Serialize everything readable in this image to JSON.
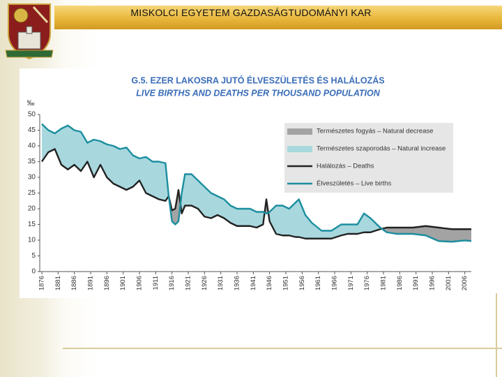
{
  "header": {
    "title": "MISKOLCI EGYETEM GAZDASÁGTUDOMÁNYI KAR"
  },
  "chart_data": {
    "type": "line",
    "title": "G.5. EZER LAKOSRA JUTÓ ÉLVESZÜLETÉS ÉS HALÁLOZÁS",
    "subtitle": "LIVE BIRTHS AND DEATHS PER THOUSAND POPULATION",
    "y_label": "‰",
    "x": [
      1876,
      1878,
      1880,
      1882,
      1884,
      1886,
      1888,
      1890,
      1892,
      1894,
      1896,
      1898,
      1900,
      1902,
      1904,
      1906,
      1908,
      1910,
      1912,
      1914,
      1915,
      1916,
      1917,
      1918,
      1919,
      1920,
      1922,
      1924,
      1926,
      1928,
      1930,
      1932,
      1934,
      1936,
      1938,
      1940,
      1942,
      1944,
      1945,
      1946,
      1948,
      1950,
      1952,
      1954,
      1955,
      1957,
      1959,
      1962,
      1965,
      1968,
      1970,
      1973,
      1975,
      1977,
      1980,
      1982,
      1985,
      1990,
      1994,
      1998,
      2002,
      2006,
      2008
    ],
    "series": [
      {
        "name": "Halálozás – Deaths",
        "color": "#222222",
        "values": [
          35,
          38,
          39,
          34,
          32.5,
          34,
          32,
          35,
          30,
          34,
          30,
          28,
          27,
          26,
          27,
          29,
          25,
          24,
          23,
          22.5,
          24,
          19.5,
          20,
          26,
          18.5,
          21,
          21,
          20,
          17.5,
          17,
          18,
          17,
          15.5,
          14.5,
          14.5,
          14.5,
          14,
          15,
          23,
          16,
          12,
          11.5,
          11.5,
          11,
          11,
          10.5,
          10.5,
          10.5,
          10.5,
          11.5,
          12,
          12,
          12.5,
          12.5,
          13.5,
          14,
          14,
          14,
          14.5,
          14,
          13.5,
          13.5,
          13.5
        ]
      },
      {
        "name": "Élveszületés – Live births",
        "color": "#1b8e9f",
        "values": [
          47,
          45,
          44,
          45.5,
          46.5,
          45,
          44.5,
          41,
          42,
          41.5,
          40.5,
          40,
          39,
          39.5,
          37,
          36,
          36.5,
          35,
          35,
          34.5,
          24,
          16,
          15,
          16,
          25,
          31,
          31,
          29,
          27,
          25,
          24,
          23,
          21,
          20,
          20,
          20,
          19,
          19,
          18.5,
          19,
          21,
          21,
          20,
          22,
          23,
          18,
          15.5,
          13,
          13,
          15,
          15,
          15,
          18.5,
          17,
          14,
          12.5,
          12,
          12,
          11.5,
          9.7,
          9.5,
          9.9,
          9.7
        ]
      }
    ],
    "areas": [
      {
        "name": "Természetes fogyás – Natural decrease",
        "color": "#a3a3a3"
      },
      {
        "name": "Természetes szaporodás – Natural increase",
        "color": "#a8d8de"
      }
    ],
    "xlim": [
      1876,
      2008
    ],
    "xticks": [
      1876,
      1881,
      1886,
      1891,
      1896,
      1901,
      1906,
      1911,
      1916,
      1921,
      1926,
      1931,
      1936,
      1941,
      1946,
      1951,
      1956,
      1961,
      1966,
      1971,
      1976,
      1981,
      1986,
      1991,
      1996,
      2001,
      2006
    ],
    "ylim": [
      0,
      50
    ],
    "yticks": [
      0,
      5,
      10,
      15,
      20,
      25,
      30,
      35,
      40,
      45,
      50
    ],
    "legend": "upper right"
  }
}
